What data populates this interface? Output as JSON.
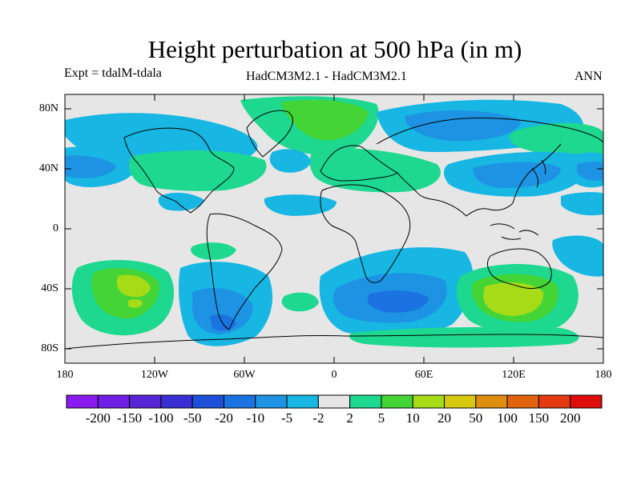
{
  "title": "Height perturbation at 500 hPa (in m)",
  "experiment": "Expt = tdalM-tdala",
  "models": "HadCM3M2.1 - HadCM3M2.1",
  "season": "ANN",
  "map": {
    "lat_ticks": [
      "80N",
      "40N",
      "0",
      "40S",
      "80S"
    ],
    "lon_ticks": [
      "180",
      "120W",
      "60W",
      "0",
      "60E",
      "120E",
      "180"
    ],
    "background_color": "#e6e6e6",
    "coastline_color": "#000000"
  },
  "colorbar": {
    "colors": [
      "#8a1cf0",
      "#6f1ee3",
      "#5825d6",
      "#3a2fd2",
      "#1e4fd9",
      "#1a73e0",
      "#1e93e3",
      "#18b6e3",
      "#e6e6e6",
      "#1ed88f",
      "#44d436",
      "#a6dc17",
      "#d8c80e",
      "#de8d0e",
      "#e2630d",
      "#e33a12",
      "#df0c0c"
    ],
    "labels": [
      "-200",
      "-150",
      "-100",
      "-50",
      "-20",
      "-10",
      "-5",
      "-2",
      "2",
      "5",
      "10",
      "20",
      "50",
      "100",
      "150",
      "200"
    ]
  }
}
